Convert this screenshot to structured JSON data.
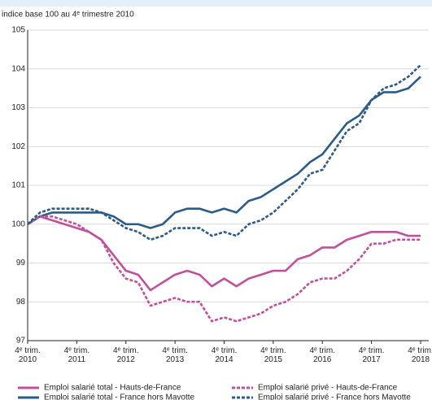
{
  "chart_data": {
    "type": "line",
    "subtitle": "indice base 100 au 4ᵉ trimestre 2010",
    "categories": [
      "4ᵉ trim. 2010",
      null,
      null,
      null,
      "4ᵉ trim. 2011",
      null,
      null,
      null,
      "4ᵉ trim. 2012",
      null,
      null,
      null,
      "4ᵉ trim. 2013",
      null,
      null,
      null,
      "4ᵉ trim. 2014",
      null,
      null,
      null,
      "4ᵉ trim. 2015",
      null,
      null,
      null,
      "4ᵉ trim. 2016",
      null,
      null,
      null,
      "4ᵉ trim. 2017",
      null,
      null,
      null,
      "4ᵉ trim. 2018"
    ],
    "ylim": [
      97,
      105
    ],
    "yticks": [
      97,
      98,
      99,
      100,
      101,
      102,
      103,
      104,
      105
    ],
    "grid": true,
    "series": [
      {
        "name": "Emploi salarié total - Hauts-de-France",
        "color": "#c0509b",
        "dashed": false,
        "values": [
          100,
          100.2,
          100.1,
          100.0,
          99.9,
          99.8,
          99.6,
          99.2,
          98.8,
          98.7,
          98.3,
          98.5,
          98.7,
          98.8,
          98.7,
          98.4,
          98.6,
          98.4,
          98.6,
          98.7,
          98.8,
          98.8,
          99.1,
          99.2,
          99.4,
          99.4,
          99.6,
          99.7,
          99.8,
          99.8,
          99.8,
          99.7,
          99.7
        ]
      },
      {
        "name": "Emploi salarié total - France hors Mayotte",
        "color": "#2d5b87",
        "dashed": false,
        "values": [
          100,
          100.2,
          100.3,
          100.3,
          100.3,
          100.3,
          100.3,
          100.2,
          100.0,
          100.0,
          99.9,
          100.0,
          100.3,
          100.4,
          100.4,
          100.3,
          100.4,
          100.3,
          100.6,
          100.7,
          100.9,
          101.1,
          101.3,
          101.6,
          101.8,
          102.2,
          102.6,
          102.8,
          103.2,
          103.4,
          103.4,
          103.5,
          103.8
        ]
      },
      {
        "name": "Emploi salarié privé - Hauts-de-France",
        "color": "#c0509b",
        "dashed": true,
        "values": [
          100,
          100.2,
          100.2,
          100.1,
          100.0,
          99.8,
          99.6,
          99.0,
          98.6,
          98.5,
          97.9,
          98.0,
          98.1,
          98.0,
          98.0,
          97.5,
          97.6,
          97.5,
          97.6,
          97.7,
          97.9,
          98.0,
          98.2,
          98.5,
          98.6,
          98.6,
          98.8,
          99.1,
          99.5,
          99.5,
          99.6,
          99.6,
          99.6
        ]
      },
      {
        "name": "Emploi salarié privé - France hors Mayotte",
        "color": "#2d5b87",
        "dashed": true,
        "values": [
          100,
          100.3,
          100.4,
          100.4,
          100.4,
          100.4,
          100.3,
          100.1,
          99.9,
          99.8,
          99.6,
          99.7,
          99.9,
          99.9,
          99.9,
          99.7,
          99.8,
          99.7,
          100.0,
          100.1,
          100.3,
          100.6,
          100.9,
          101.3,
          101.4,
          101.9,
          102.4,
          102.6,
          103.2,
          103.5,
          103.6,
          103.8,
          104.1
        ]
      }
    ]
  }
}
